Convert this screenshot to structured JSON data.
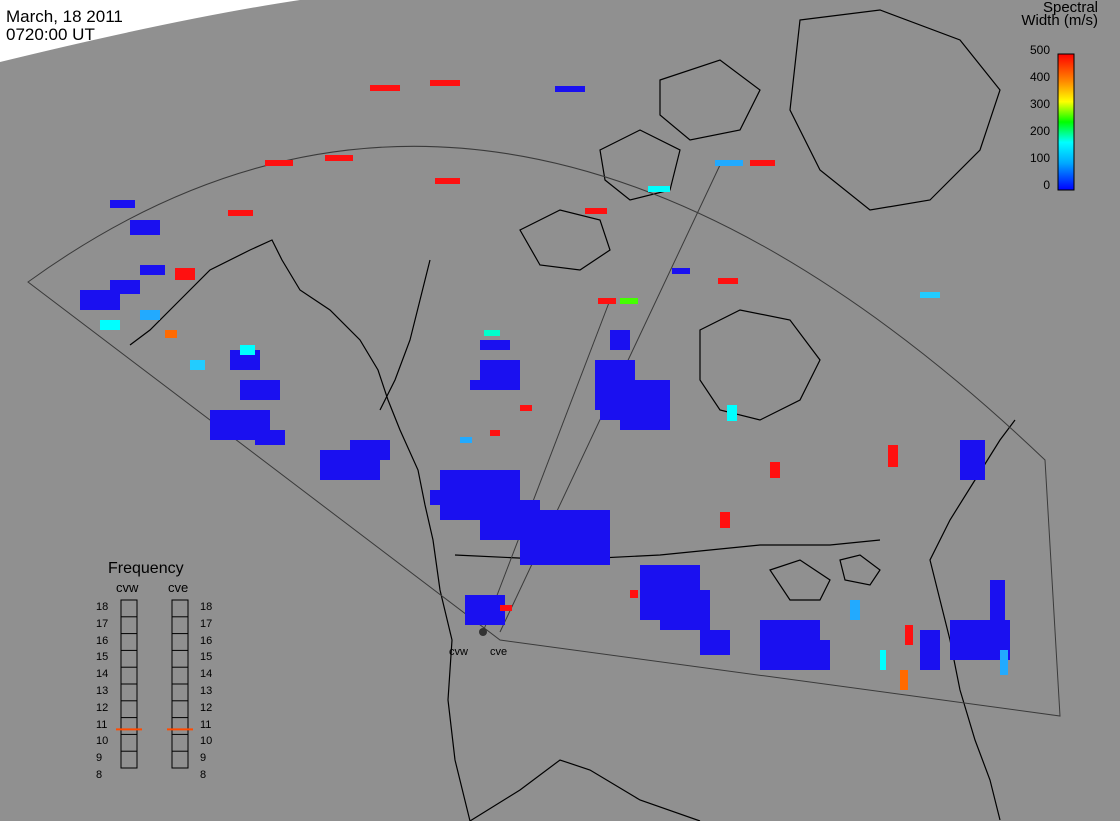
{
  "header": {
    "date": "March, 18 2011",
    "time": "0720:00 UT"
  },
  "colorbar": {
    "title_line1": "Spectral",
    "title_line2": "Width (m/s)",
    "ticks": [
      "500",
      "400",
      "300",
      "200",
      "100",
      "0"
    ],
    "range": [
      0,
      500
    ],
    "colors": [
      "#0000ff",
      "#00aaff",
      "#00ffff",
      "#00ff00",
      "#ffff00",
      "#ff8800",
      "#ff0000"
    ]
  },
  "frequency_panel": {
    "title": "Frequency",
    "radars": [
      "cvw",
      "cve"
    ],
    "scale": [
      "18",
      "17",
      "16",
      "15",
      "14",
      "13",
      "12",
      "11",
      "10",
      "9",
      "8"
    ],
    "cvw_freq": 10.8,
    "cve_freq": 10.8,
    "marker_color": "#ff4a00"
  },
  "sites": {
    "left": "cvw",
    "right": "cve"
  },
  "map_colors": {
    "ocean": "#909090",
    "land_outline": "#000000",
    "fov_outline": "#3a3a3a",
    "daylight": "#ffffff"
  }
}
